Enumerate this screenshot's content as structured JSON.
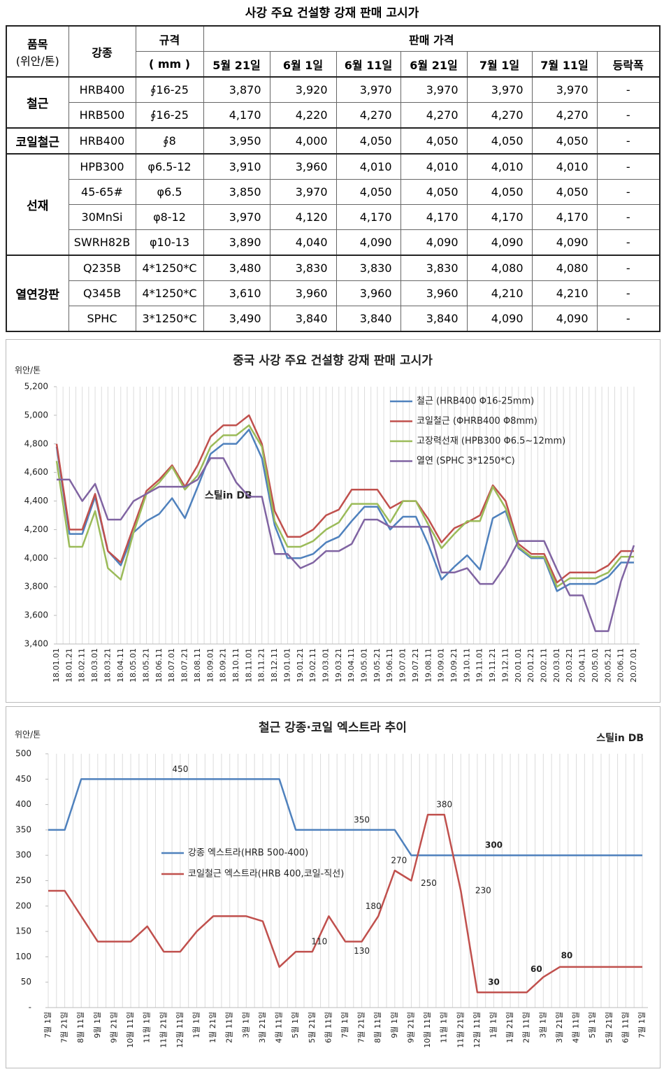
{
  "table": {
    "title": "사강 주요 건설향 강재 판매 고시가",
    "header": {
      "item": "품목",
      "unit": "(위안/톤)",
      "grade": "강종",
      "spec": "규격",
      "spec_unit": "( mm )",
      "price": "판매 가격",
      "dates": [
        "5월 21일",
        "6월 1일",
        "6월 11일",
        "6월 21일",
        "7월 1일",
        "7월 11일"
      ],
      "change": "등락폭"
    },
    "groups": [
      {
        "name": "철근",
        "rows": [
          {
            "grade": "HRB400",
            "spec": "∮16-25",
            "prices": [
              "3,870",
              "3,920",
              "3,970",
              "3,970",
              "3,970",
              "3,970"
            ],
            "change": "-"
          },
          {
            "grade": "HRB500",
            "spec": "∮16-25",
            "prices": [
              "4,170",
              "4,220",
              "4,270",
              "4,270",
              "4,270",
              "4,270"
            ],
            "change": "-"
          }
        ]
      },
      {
        "name": "코일철근",
        "rows": [
          {
            "grade": "HRB400",
            "spec": "∮8",
            "prices": [
              "3,950",
              "4,000",
              "4,050",
              "4,050",
              "4,050",
              "4,050"
            ],
            "change": "-"
          }
        ]
      },
      {
        "name": "선재",
        "rows": [
          {
            "grade": "HPB300",
            "spec": "φ6.5-12",
            "prices": [
              "3,910",
              "3,960",
              "4,010",
              "4,010",
              "4,010",
              "4,010"
            ],
            "change": "-"
          },
          {
            "grade": "45-65#",
            "spec": "φ6.5",
            "prices": [
              "3,850",
              "3,970",
              "4,050",
              "4,050",
              "4,050",
              "4,050"
            ],
            "change": "-"
          },
          {
            "grade": "30MnSi",
            "spec": "φ8-12",
            "prices": [
              "3,970",
              "4,120",
              "4,170",
              "4,170",
              "4,170",
              "4,170"
            ],
            "change": "-"
          },
          {
            "grade": "SWRH82B",
            "spec": "φ10-13",
            "prices": [
              "3,890",
              "4,040",
              "4,090",
              "4,090",
              "4,090",
              "4,090"
            ],
            "change": "-"
          }
        ]
      },
      {
        "name": "열연강판",
        "rows": [
          {
            "grade": "Q235B",
            "spec": "4*1250*C",
            "prices": [
              "3,480",
              "3,830",
              "3,830",
              "3,830",
              "4,080",
              "4,080"
            ],
            "change": "-"
          },
          {
            "grade": "Q345B",
            "spec": "4*1250*C",
            "prices": [
              "3,610",
              "3,960",
              "3,960",
              "3,960",
              "4,210",
              "4,210"
            ],
            "change": "-"
          },
          {
            "grade": "SPHC",
            "spec": "3*1250*C",
            "prices": [
              "3,490",
              "3,840",
              "3,840",
              "3,840",
              "4,090",
              "4,090"
            ],
            "change": "-"
          }
        ]
      }
    ]
  },
  "chart_data": [
    {
      "type": "line",
      "title": "중국 사강 주요 건설향 강재 판매 고시가",
      "y_label": "위안/톤",
      "watermark": "스틸in DB",
      "categories": [
        "18.01.01",
        "18.01.21",
        "18.02.11",
        "18.03.01",
        "18.03.21",
        "18.04.11",
        "18.05.01",
        "18.05.21",
        "18.06.11",
        "18.07.01",
        "18.07.21",
        "18.08.11",
        "18.09.01",
        "18.09.21",
        "18.10.11",
        "18.11.01",
        "18.11.21",
        "18.12.11",
        "19.01.01",
        "19.01.21",
        "19.02.11",
        "19.03.01",
        "19.03.21",
        "19.04.11",
        "19.05.01",
        "19.05.21",
        "19.06.11",
        "19.07.01",
        "19.07.21",
        "19.08.11",
        "19.09.01",
        "19.09.21",
        "19.10.11",
        "19.11.01",
        "19.11.21",
        "19.12.11",
        "20.01.01",
        "20.01.21",
        "20.02.11",
        "20.03.01",
        "20.03.21",
        "20.04.11",
        "20.05.01",
        "20.05.21",
        "20.06.11",
        "20.07.01"
      ],
      "ylim": [
        3400,
        5200
      ],
      "yticks": [
        {
          "value": 3400,
          "label": "3,400"
        },
        {
          "value": 3600,
          "label": "3,600"
        },
        {
          "value": 3800,
          "label": "3,800"
        },
        {
          "value": 4000,
          "label": "4,000"
        },
        {
          "value": 4200,
          "label": "4,200"
        },
        {
          "value": 4400,
          "label": "4,400"
        },
        {
          "value": 4600,
          "label": "4,600"
        },
        {
          "value": 4800,
          "label": "4,800"
        },
        {
          "value": 5000,
          "label": "5,000"
        },
        {
          "value": 5200,
          "label": "5,200"
        }
      ],
      "series": [
        {
          "name": "철근 (HRB400  Φ16-25mm)",
          "color": "#4f81bd",
          "values": [
            4780,
            4170,
            4170,
            4430,
            4050,
            3950,
            4180,
            4260,
            4310,
            4420,
            4280,
            4500,
            4730,
            4800,
            4800,
            4900,
            4700,
            4230,
            4000,
            4000,
            4030,
            4110,
            4150,
            4260,
            4360,
            4360,
            4200,
            4290,
            4290,
            4090,
            3850,
            3940,
            4020,
            3920,
            4280,
            4330,
            4070,
            4000,
            4000,
            3770,
            3820,
            3820,
            3820,
            3870,
            3970,
            3970
          ]
        },
        {
          "name": "코일철근 (ΦHRB400  Φ8mm)",
          "color": "#c0504d",
          "values": [
            4800,
            4200,
            4200,
            4450,
            4050,
            3970,
            4220,
            4470,
            4550,
            4650,
            4500,
            4650,
            4850,
            4930,
            4930,
            5000,
            4800,
            4330,
            4150,
            4150,
            4200,
            4300,
            4340,
            4480,
            4480,
            4480,
            4350,
            4400,
            4400,
            4270,
            4110,
            4210,
            4250,
            4300,
            4510,
            4400,
            4100,
            4030,
            4030,
            3830,
            3900,
            3900,
            3900,
            3950,
            4050,
            4050
          ]
        },
        {
          "name": "고장력선재 (HPB300  Φ6.5~12mm)",
          "color": "#9bbb59",
          "values": [
            4680,
            4080,
            4080,
            4330,
            3930,
            3850,
            4180,
            4450,
            4530,
            4640,
            4480,
            4580,
            4780,
            4860,
            4860,
            4930,
            4780,
            4260,
            4080,
            4080,
            4120,
            4200,
            4250,
            4380,
            4380,
            4380,
            4250,
            4400,
            4400,
            4230,
            4070,
            4170,
            4260,
            4260,
            4500,
            4350,
            4080,
            4010,
            4010,
            3800,
            3860,
            3860,
            3860,
            3900,
            4010,
            4010
          ]
        },
        {
          "name": "열연 (SPHC 3*1250*C)",
          "color": "#8064a2",
          "values": [
            4550,
            4550,
            4400,
            4520,
            4270,
            4270,
            4400,
            4450,
            4500,
            4500,
            4500,
            4550,
            4700,
            4700,
            4530,
            4430,
            4430,
            4030,
            4030,
            3930,
            3970,
            4050,
            4050,
            4100,
            4270,
            4270,
            4220,
            4220,
            4220,
            4220,
            3900,
            3900,
            3930,
            3820,
            3820,
            3950,
            4120,
            4120,
            4120,
            3920,
            3740,
            3740,
            3490,
            3490,
            3840,
            4090
          ]
        }
      ]
    },
    {
      "type": "line",
      "title": "철근 강종·코일 엑스트라 추이",
      "y_label": "위안/톤",
      "watermark": "스틸in DB",
      "categories": [
        "7월 1일",
        "7월 21일",
        "8월 11일",
        "9월 1일",
        "9월 21일",
        "10월 11일",
        "11월 1일",
        "11월 21일",
        "12월 11일",
        "1월 1일",
        "1월 21일",
        "2월 11일",
        "3월 1일",
        "3월 21일",
        "4월 11일",
        "5월 1일",
        "5월 21일",
        "6월 11일",
        "7월 1일",
        "7월 21일",
        "8월 11일",
        "9월 1일",
        "9월 21일",
        "10월 11일",
        "11월 1일",
        "11월 21일",
        "12월 11일",
        "1월 1일",
        "1월 21일",
        "2월 11일",
        "3월 1일",
        "3월 21일",
        "4월 11일",
        "5월 1일",
        "5월 21일",
        "6월 11일",
        "7월 1일"
      ],
      "ylim": [
        0,
        500
      ],
      "yticks": [
        {
          "value": 0,
          "label": "-"
        },
        50,
        100,
        150,
        200,
        250,
        300,
        350,
        400,
        450,
        500
      ],
      "series": [
        {
          "name": "강종 엑스트라(HRB 500-400)",
          "color": "#4f81bd",
          "values": [
            350,
            350,
            450,
            450,
            450,
            450,
            450,
            450,
            450,
            450,
            450,
            450,
            450,
            450,
            450,
            350,
            350,
            350,
            350,
            350,
            350,
            350,
            300,
            300,
            300,
            300,
            300,
            300,
            300,
            300,
            300,
            300,
            300,
            300,
            300,
            300,
            300
          ]
        },
        {
          "name": "코일철근 엑스트라(HRB 400,코일-직선)",
          "color": "#c0504d",
          "values": [
            230,
            230,
            180,
            130,
            130,
            130,
            160,
            110,
            110,
            150,
            180,
            180,
            180,
            170,
            80,
            110,
            110,
            180,
            130,
            130,
            180,
            270,
            250,
            380,
            380,
            230,
            30,
            30,
            30,
            30,
            60,
            80,
            80,
            80,
            80,
            80,
            80
          ]
        }
      ]
    }
  ]
}
